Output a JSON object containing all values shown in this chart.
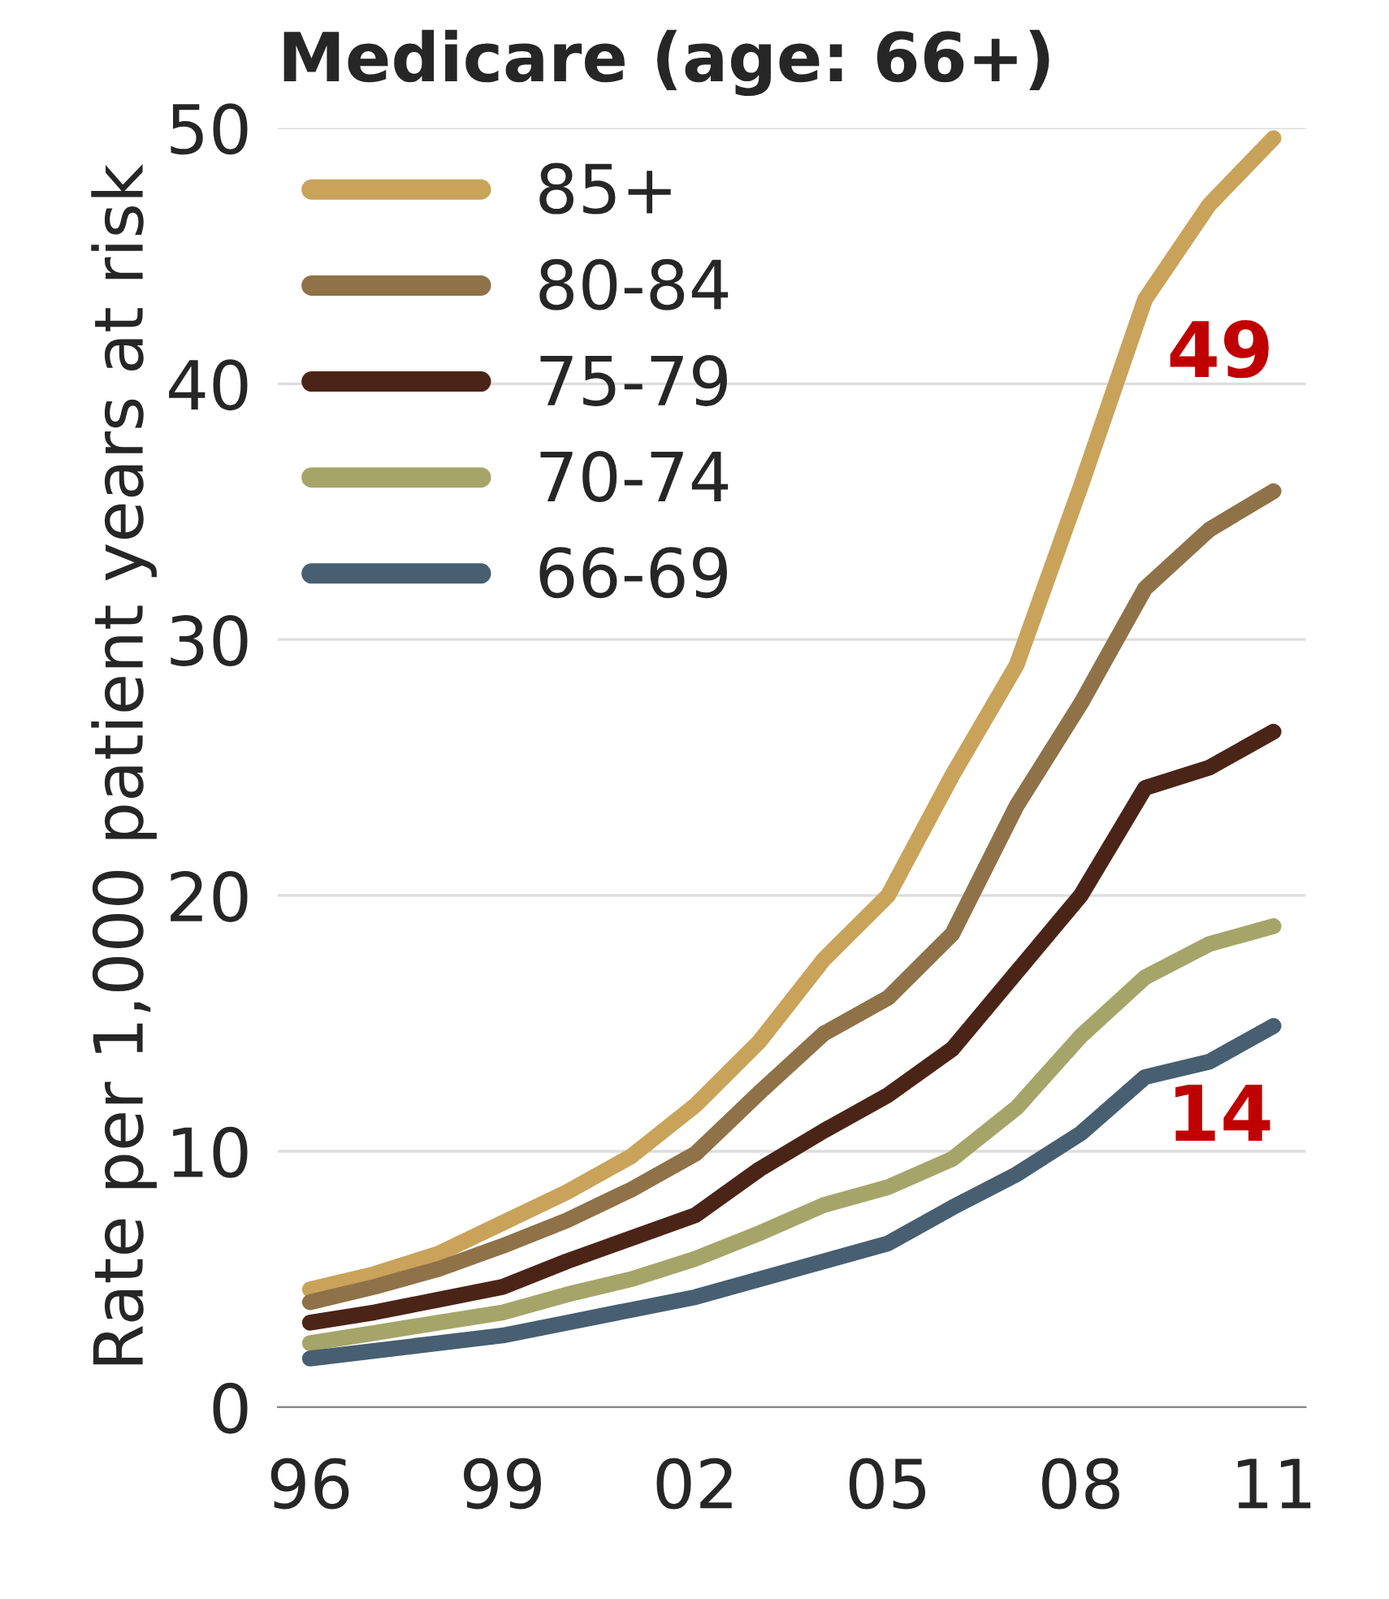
{
  "chart_data": {
    "type": "line",
    "title": "Medicare (age: 66+)",
    "ylabel": "Rate per 1,000 patient years at risk",
    "x": [
      1996,
      1997,
      1998,
      1999,
      2000,
      2001,
      2002,
      2003,
      2004,
      2005,
      2006,
      2007,
      2008,
      2009,
      2010,
      2011
    ],
    "series": [
      {
        "name": "85+",
        "color": "#c9a35a",
        "values": [
          4.6,
          5.2,
          6.0,
          7.2,
          8.4,
          9.8,
          11.8,
          14.3,
          17.5,
          20.0,
          24.7,
          29.0,
          36.0,
          43.3,
          47.0,
          49.6
        ]
      },
      {
        "name": "80-84",
        "color": "#8f7248",
        "values": [
          4.1,
          4.7,
          5.4,
          6.3,
          7.3,
          8.5,
          9.9,
          12.3,
          14.6,
          16.0,
          18.5,
          23.5,
          27.5,
          32.0,
          34.3,
          35.8
        ]
      },
      {
        "name": "75-79",
        "color": "#4a2517",
        "values": [
          3.3,
          3.7,
          4.2,
          4.7,
          5.7,
          6.6,
          7.5,
          9.3,
          10.8,
          12.2,
          14.0,
          17.0,
          20.0,
          24.2,
          25.0,
          26.4
        ]
      },
      {
        "name": "70-74",
        "color": "#a5a56a",
        "values": [
          2.5,
          2.9,
          3.3,
          3.7,
          4.4,
          5.0,
          5.8,
          6.8,
          7.9,
          8.6,
          9.7,
          11.7,
          14.5,
          16.8,
          18.1,
          18.8
        ]
      },
      {
        "name": "66-69",
        "color": "#475f70",
        "values": [
          1.9,
          2.2,
          2.5,
          2.8,
          3.3,
          3.8,
          4.3,
          5.0,
          5.7,
          6.4,
          7.8,
          9.1,
          10.7,
          12.9,
          13.5,
          14.9
        ]
      }
    ],
    "annotations": [
      {
        "text": "49",
        "x": 2011,
        "y": 49.6
      },
      {
        "text": "14",
        "x": 2011,
        "y": 14.9
      }
    ],
    "xlim": [
      1995.5,
      2011.5
    ],
    "ylim": [
      0,
      50
    ],
    "xticks": [
      {
        "value": 1996,
        "label": "96"
      },
      {
        "value": 1999,
        "label": "99"
      },
      {
        "value": 2002,
        "label": "02"
      },
      {
        "value": 2005,
        "label": "05"
      },
      {
        "value": 2008,
        "label": "08"
      },
      {
        "value": 2011,
        "label": "11"
      }
    ],
    "yticks": [
      0,
      10,
      20,
      30,
      40,
      50
    ],
    "grid": "y",
    "legend": "top left"
  }
}
